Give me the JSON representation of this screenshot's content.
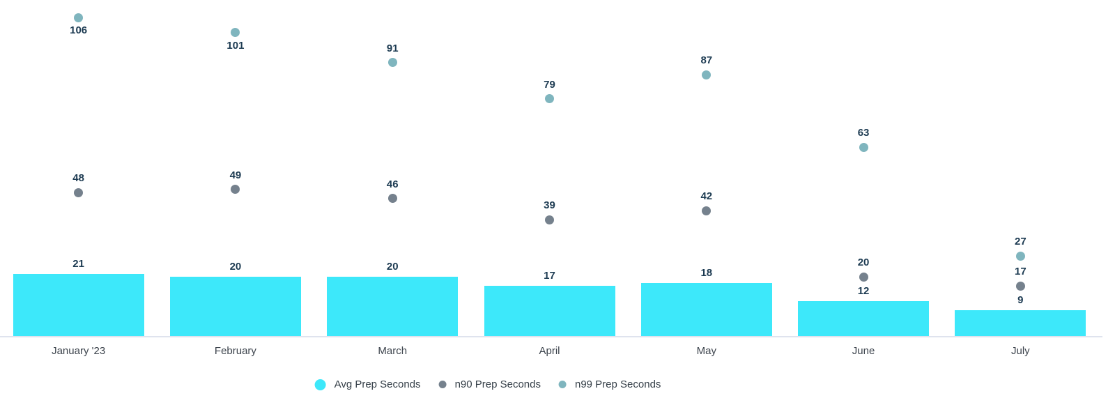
{
  "chart_data": {
    "type": "bar",
    "title": "",
    "xlabel": "",
    "ylabel": "",
    "ylim": [
      0,
      112
    ],
    "grid": false,
    "legend_position": "bottom",
    "value_labels": true,
    "categories": [
      "January '23",
      "February",
      "March",
      "April",
      "May",
      "June",
      "July"
    ],
    "series": [
      {
        "name": "Avg Prep Seconds",
        "type": "bar",
        "color": "#3DE8FA",
        "values": [
          21,
          20,
          20,
          17,
          18,
          12,
          9
        ]
      },
      {
        "name": "n90 Prep Seconds",
        "type": "scatter",
        "color": "#75818D",
        "values": [
          48,
          49,
          46,
          39,
          42,
          20,
          17
        ]
      },
      {
        "name": "n99 Prep Seconds",
        "type": "scatter",
        "color": "#7FB5BE",
        "values": [
          106,
          101,
          91,
          79,
          87,
          63,
          27
        ]
      }
    ]
  },
  "colors": {
    "value_label": "#1D3B52",
    "month_label": "#3C434C",
    "axis_line": "#DFE3EE",
    "legend_text": "#353F48",
    "background": "#FFFFFF"
  },
  "legend": {
    "items": [
      {
        "label": "Avg Prep Seconds",
        "color": "#3DE8FA"
      },
      {
        "label": "n90 Prep Seconds",
        "color": "#75818D"
      },
      {
        "label": "n99 Prep Seconds",
        "color": "#7FB5BE"
      }
    ]
  }
}
